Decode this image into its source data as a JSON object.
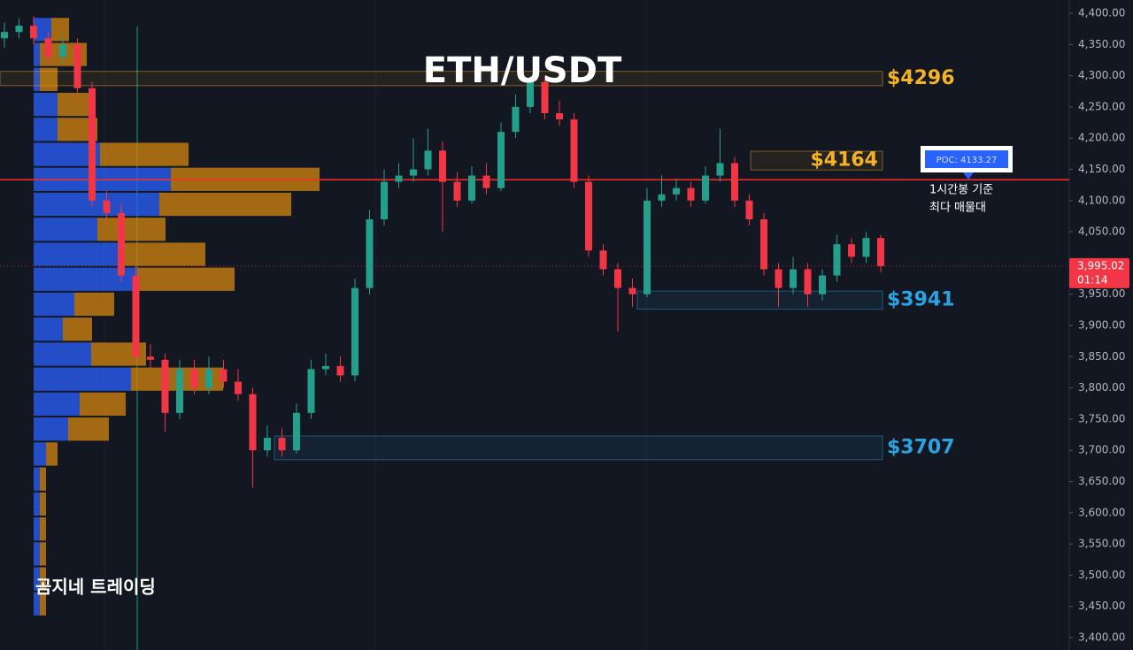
{
  "chart_data": {
    "type": "candlestick",
    "title": "ETH/USDT",
    "watermark": "곰지네 트레이딩",
    "up_color": "#22a08c",
    "down_color": "#f23645",
    "ylim": [
      3400,
      4400
    ],
    "yticks": [
      {
        "value": 3400,
        "label": "3,400.00"
      },
      {
        "value": 3450,
        "label": "3,450.00"
      },
      {
        "value": 3500,
        "label": "3,500.00"
      },
      {
        "value": 3550,
        "label": "3,550.00"
      },
      {
        "value": 3600,
        "label": "3,600.00"
      },
      {
        "value": 3650,
        "label": "3,650.00"
      },
      {
        "value": 3700,
        "label": "3,700.00"
      },
      {
        "value": 3750,
        "label": "3,750.00"
      },
      {
        "value": 3800,
        "label": "3,800.00"
      },
      {
        "value": 3850,
        "label": "3,850.00"
      },
      {
        "value": 3900,
        "label": "3,900.00"
      },
      {
        "value": 3950,
        "label": "3,950.00"
      },
      {
        "value": 4000,
        "label": "4,000.00"
      },
      {
        "value": 4050,
        "label": "4,050.00"
      },
      {
        "value": 4100,
        "label": "4,100.00"
      },
      {
        "value": 4150,
        "label": "4,150.00"
      },
      {
        "value": 4200,
        "label": "4,200.00"
      },
      {
        "value": 4250,
        "label": "4,250.00"
      },
      {
        "value": 4300,
        "label": "4,300.00"
      },
      {
        "value": 4350,
        "label": "4,350.00"
      },
      {
        "value": 4400,
        "label": "4,400.00"
      }
    ],
    "open": [
      4360,
      4370,
      4380,
      4360,
      4330,
      4350,
      4280,
      4100,
      4080,
      3980,
      3850,
      3845,
      3760,
      3830,
      3800,
      3830,
      3810,
      3790,
      3700,
      3720,
      3700,
      3760,
      3830,
      3835,
      3820,
      3960,
      4070,
      4130,
      4140,
      4150,
      4180,
      4130,
      4100,
      4140,
      4120,
      4210,
      4250,
      4290,
      4240,
      4230,
      4130,
      4020,
      3990,
      3960,
      3950,
      4100,
      4110,
      4120,
      4100,
      4140,
      4160,
      4100,
      4070,
      3990,
      3960,
      3990,
      3950,
      3980,
      4030,
      4010,
      4040
    ],
    "high": [
      4385,
      4392,
      4395,
      4370,
      4365,
      4360,
      4290,
      4115,
      4095,
      3995,
      3870,
      3855,
      3845,
      3845,
      3850,
      3845,
      3830,
      3800,
      3740,
      3735,
      3775,
      3845,
      3855,
      3850,
      3975,
      4085,
      4150,
      4160,
      4200,
      4215,
      4195,
      4145,
      4155,
      4160,
      4225,
      4270,
      4300,
      4300,
      4260,
      4240,
      4140,
      4030,
      4000,
      3975,
      4120,
      4140,
      4135,
      4130,
      4155,
      4215,
      4170,
      4110,
      4080,
      4000,
      4010,
      4000,
      3990,
      4045,
      4040,
      4050,
      4045
    ],
    "low": [
      4345,
      4360,
      4350,
      4320,
      4320,
      4270,
      4090,
      4065,
      3970,
      3840,
      3830,
      3730,
      3750,
      3790,
      3790,
      3800,
      3780,
      3640,
      3690,
      3690,
      3695,
      3750,
      3820,
      3810,
      3810,
      3950,
      4060,
      4120,
      4130,
      4140,
      4050,
      4090,
      4095,
      4110,
      4115,
      4200,
      4240,
      4230,
      4220,
      4120,
      4010,
      3980,
      3890,
      3930,
      3945,
      4090,
      4100,
      4090,
      4095,
      4130,
      4090,
      4060,
      3980,
      3930,
      3950,
      3930,
      3940,
      3970,
      4000,
      4000,
      3985
    ],
    "close": [
      4370,
      4380,
      4360,
      4330,
      4350,
      4280,
      4100,
      4080,
      3980,
      3850,
      3845,
      3760,
      3830,
      3800,
      3830,
      3810,
      3790,
      3700,
      3720,
      3700,
      3760,
      3830,
      3835,
      3820,
      3960,
      4070,
      4130,
      4140,
      4150,
      4180,
      4130,
      4100,
      4140,
      4120,
      4210,
      4250,
      4290,
      4240,
      4230,
      4130,
      4020,
      3990,
      3960,
      3950,
      4100,
      4110,
      4120,
      4100,
      4140,
      4160,
      4100,
      4070,
      3990,
      3960,
      3990,
      3950,
      3980,
      4030,
      4010,
      4040,
      3995
    ],
    "profile": {
      "buy_color": "#2962ff",
      "sell_color": "#d4870f",
      "prices": [
        4374,
        4334,
        4294,
        4254,
        4214,
        4174,
        4134,
        4094,
        4054,
        4014,
        3974,
        3934,
        3894,
        3854,
        3814,
        3774,
        3734,
        3694,
        3654,
        3614,
        3574,
        3534,
        3494,
        3454
      ],
      "buy": [
        20,
        7,
        7,
        27,
        27,
        75,
        155,
        142,
        72,
        97,
        117,
        46,
        33,
        65,
        110,
        52,
        39,
        14,
        7,
        7,
        7,
        7,
        7,
        7
      ],
      "sell": [
        20,
        53,
        20,
        39,
        45,
        100,
        168,
        149,
        77,
        97,
        110,
        45,
        33,
        62,
        104,
        52,
        46,
        13,
        7,
        7,
        7,
        7,
        7,
        7
      ]
    },
    "poc": {
      "value": 4133.27,
      "label": "POC: 4133.27"
    },
    "poc_note": [
      "1시간봉 기준",
      "최다 매물대"
    ],
    "current_price": {
      "value": 3995.02,
      "label": "3,995.02"
    },
    "countdown": "01:14",
    "zones": [
      {
        "label": "$4296",
        "top": 4307,
        "bottom": 4284,
        "color": "#f5b324"
      },
      {
        "label": "$4164",
        "top": 4179,
        "bottom": 4149,
        "color": "#f5b324"
      },
      {
        "label": "$3941",
        "top": 3955,
        "bottom": 3926,
        "color": "#2aa3e0"
      },
      {
        "label": "$3707",
        "top": 3723,
        "bottom": 3685,
        "color": "#2aa3e0"
      }
    ]
  }
}
